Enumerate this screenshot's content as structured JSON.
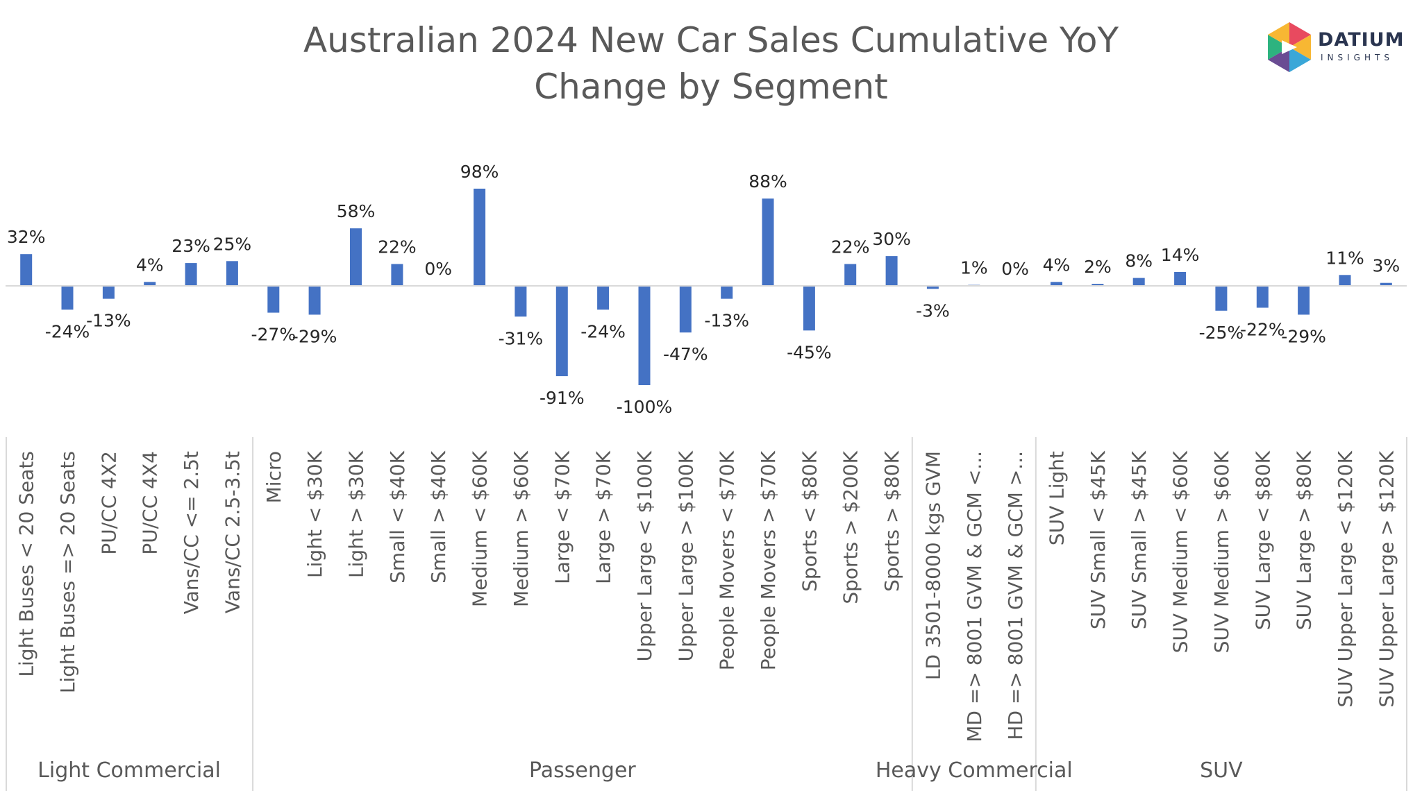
{
  "chart_data": {
    "type": "bar",
    "title_line1": "Australian 2024 New Car Sales Cumulative YoY",
    "title_line2": "Change by Segment",
    "xlabel": "",
    "ylabel": "",
    "ylim": [
      -100,
      100
    ],
    "grid": false,
    "legend": "none",
    "bar_color": "#4472C4",
    "categories": [
      "Light Buses < 20 Seats",
      "Light Buses => 20 Seats",
      "PU/CC 4X2",
      "PU/CC 4X4",
      "Vans/CC <= 2.5t",
      "Vans/CC 2.5-3.5t",
      "Micro",
      "Light < $30K",
      "Light > $30K",
      "Small < $40K",
      "Small > $40K",
      "Medium < $60K",
      "Medium > $60K",
      "Large < $70K",
      "Large > $70K",
      "Upper Large < $100K",
      "Upper Large > $100K",
      "People Movers < $70K",
      "People Movers > $70K",
      "Sports < $80K",
      "Sports > $200K",
      "Sports > $80K",
      "LD 3501-8000 kgs GVM",
      "MD => 8001 GVM & GCM <...",
      "HD => 8001 GVM & GCM >...",
      "SUV Light",
      "SUV Small < $45K",
      "SUV Small > $45K",
      "SUV Medium < $60K",
      "SUV Medium > $60K",
      "SUV Large < $80K",
      "SUV Large > $80K",
      "SUV Upper Large < $120K",
      "SUV Upper Large > $120K"
    ],
    "values": [
      32,
      -24,
      -13,
      4,
      23,
      25,
      -27,
      -29,
      58,
      22,
      0,
      98,
      -31,
      -91,
      -24,
      -100,
      -47,
      -13,
      88,
      -45,
      22,
      30,
      -3,
      1,
      0,
      4,
      2,
      8,
      14,
      -25,
      -22,
      -29,
      11,
      3
    ],
    "data_labels": [
      "32%",
      "-24%",
      "-13%",
      "4%",
      "23%",
      "25%",
      "-27%",
      "-29%",
      "58%",
      "22%",
      "0%",
      "98%",
      "-31%",
      "-91%",
      "-24%",
      "-100%",
      "-47%",
      "-13%",
      "88%",
      "-45%",
      "22%",
      "30%",
      "-3%",
      "1%",
      "0%",
      "4%",
      "2%",
      "8%",
      "14%",
      "-25%",
      "-22%",
      "-29%",
      "11%",
      "3%"
    ],
    "groups": [
      {
        "name": "Light Commercial",
        "count": 6
      },
      {
        "name": "Passenger",
        "count": 16
      },
      {
        "name": "Heavy Commercial",
        "count": 3
      },
      {
        "name": "SUV",
        "count": 9
      }
    ]
  },
  "logo": {
    "name": "DATIUM",
    "sub": "INSIGHTS",
    "colors": [
      "#e84a5f",
      "#f7b733",
      "#3aa7d8",
      "#6a4c93",
      "#2db37f"
    ]
  }
}
